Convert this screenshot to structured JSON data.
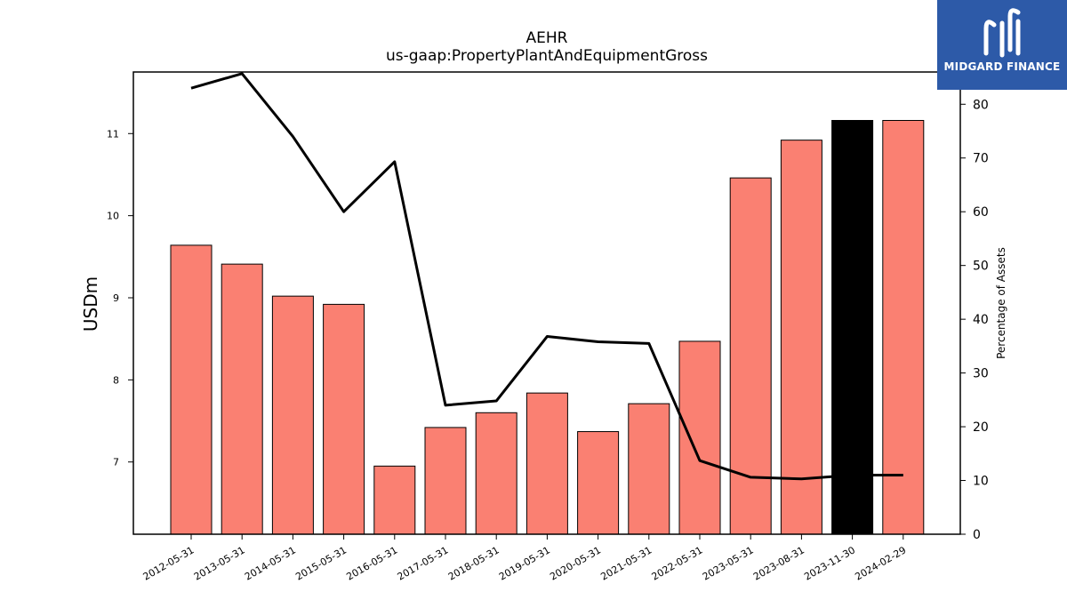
{
  "title_line1": "AEHR",
  "title_line2": "us-gaap:PropertyPlantAndEquipmentGross",
  "logo": {
    "text": "MIDGARD FINANCE",
    "background": "#2d5aa8"
  },
  "colors": {
    "bar": "#fa8072",
    "bar_highlight": "#000000",
    "line": "#000000"
  },
  "chart_data": {
    "type": "bar",
    "categories": [
      "2012-05-31",
      "2013-05-31",
      "2014-05-31",
      "2015-05-31",
      "2016-05-31",
      "2017-05-31",
      "2018-05-31",
      "2019-05-31",
      "2020-05-31",
      "2021-05-31",
      "2022-05-31",
      "2023-05-31",
      "2023-08-31",
      "2023-11-30",
      "2024-02-29"
    ],
    "ylabel": "USDm",
    "y2label": "Percentage of Assets",
    "ylim": [
      6.12,
      11.75
    ],
    "y2lim": [
      0,
      86
    ],
    "yticks": [
      7,
      8,
      9,
      10,
      11
    ],
    "y2ticks": [
      0,
      10,
      20,
      30,
      40,
      50,
      60,
      70,
      80
    ],
    "highlight_index": 13,
    "series": [
      {
        "type": "bar",
        "axis": "left",
        "values": [
          9.64,
          9.41,
          9.02,
          8.92,
          6.95,
          7.42,
          7.6,
          7.84,
          7.37,
          7.71,
          8.47,
          10.46,
          10.92,
          11.16,
          11.16
        ]
      },
      {
        "type": "line",
        "axis": "right",
        "values": [
          83.0,
          85.7,
          74.0,
          60.0,
          69.3,
          24.0,
          24.8,
          36.8,
          35.8,
          35.5,
          13.7,
          10.6,
          10.3,
          11.0,
          11.0
        ]
      }
    ]
  }
}
